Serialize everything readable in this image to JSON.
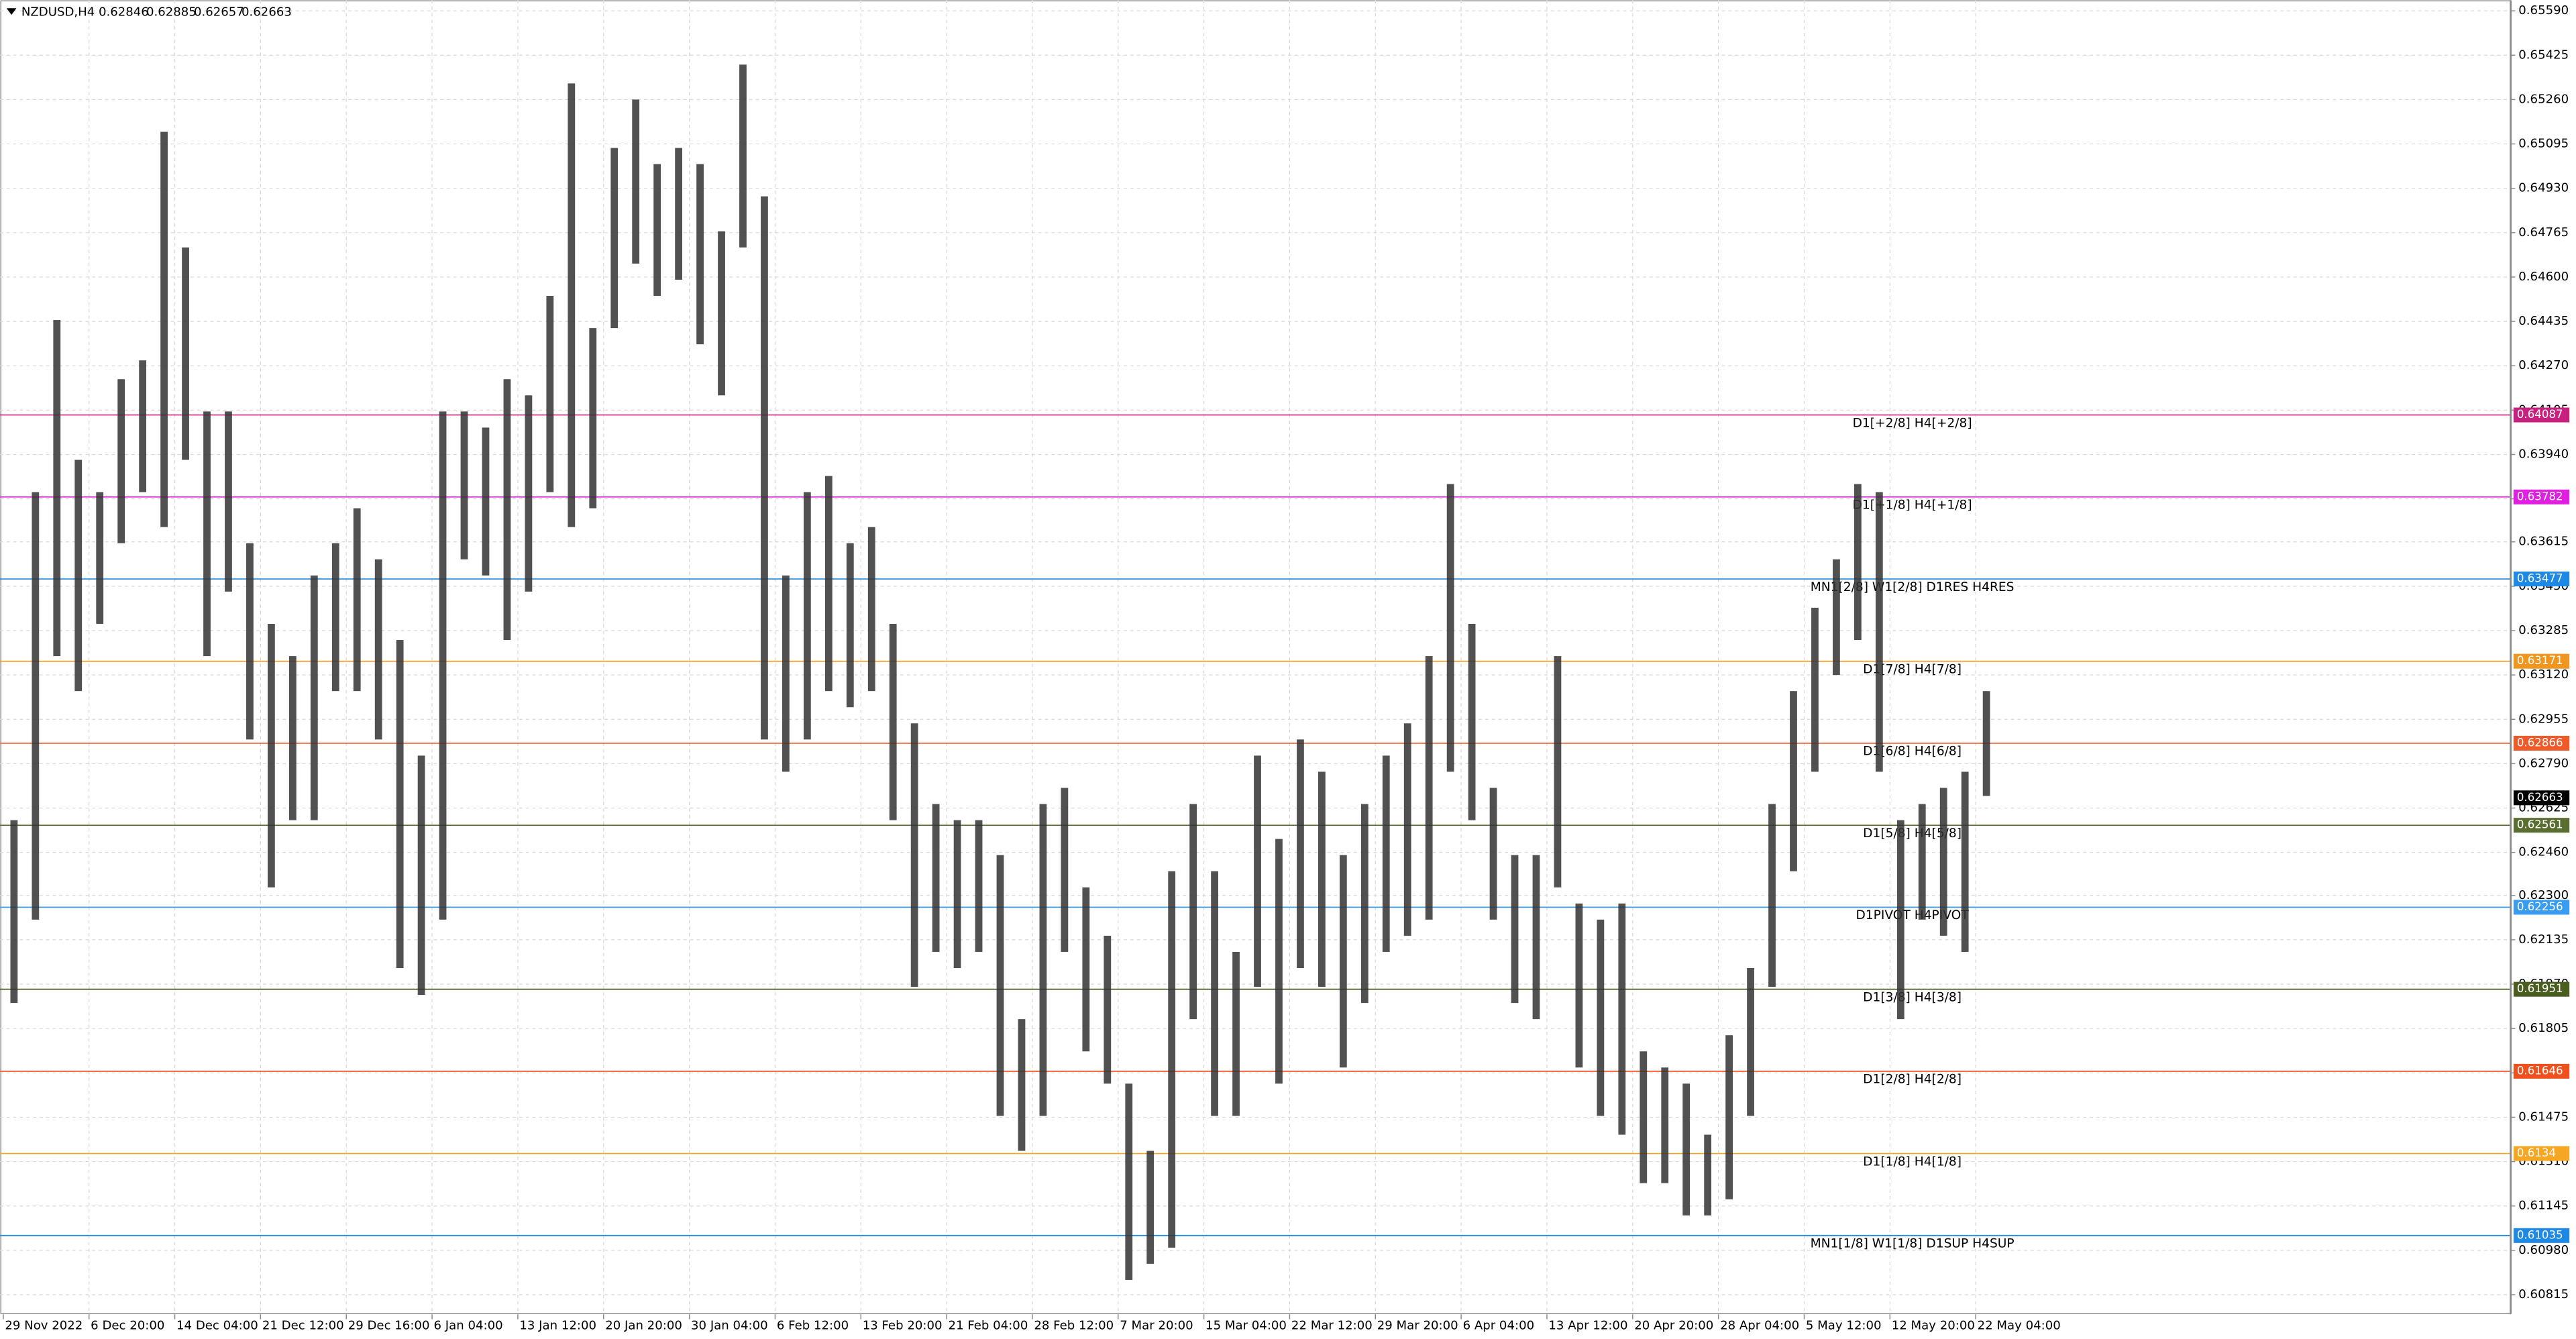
{
  "chart_data": {
    "type": "range-bar",
    "title": "NZDUSD,H4",
    "ohlc": [
      0.62846,
      0.62885,
      0.62657,
      0.62663
    ],
    "grid": true,
    "ylim": [
      0.60742,
      0.65618
    ],
    "yticks": [
      {
        "value": 0.6559,
        "label": "0.65590"
      },
      0.65425,
      {
        "value": 0.6526,
        "label": "0.65260"
      },
      0.65095,
      {
        "value": 0.6493,
        "label": "0.64930"
      },
      0.64765,
      {
        "value": 0.646,
        "label": "0.64600"
      },
      0.64435,
      {
        "value": 0.6427,
        "label": "0.64270"
      },
      0.64105,
      {
        "value": 0.6394,
        "label": "0.63940"
      },
      0.63775,
      0.63615,
      {
        "value": 0.6345,
        "label": "0.63450"
      },
      0.63285,
      {
        "value": 0.6312,
        "label": "0.63120"
      },
      0.62955,
      {
        "value": 0.6279,
        "label": "0.62790"
      },
      0.62625,
      {
        "value": 0.6246,
        "label": "0.62460"
      },
      {
        "value": 0.623,
        "label": "0.62300"
      },
      0.62135,
      {
        "value": 0.6197,
        "label": "0.61970"
      },
      0.61805,
      {
        "value": 0.6164,
        "label": "0.61640"
      },
      0.61475,
      {
        "value": 0.6131,
        "label": "0.61310"
      },
      0.61145,
      {
        "value": 0.6098,
        "label": "0.60980"
      },
      0.60815
    ],
    "categories": [
      "29 Nov 2022",
      null,
      null,
      null,
      "6 Dec 20:00",
      null,
      null,
      null,
      "14 Dec 04:00",
      null,
      null,
      null,
      "21 Dec 12:00",
      null,
      null,
      null,
      "29 Dec 16:00",
      null,
      null,
      null,
      "6 Jan 04:00",
      null,
      null,
      null,
      "13 Jan 12:00",
      null,
      null,
      null,
      "20 Jan 20:00",
      null,
      null,
      null,
      "30 Jan 04:00",
      null,
      null,
      null,
      "6 Feb 12:00",
      null,
      null,
      null,
      "13 Feb 20:00",
      null,
      null,
      null,
      "21 Feb 04:00",
      null,
      null,
      null,
      "28 Feb 12:00",
      null,
      null,
      null,
      "7 Mar 20:00",
      null,
      null,
      null,
      "15 Mar 04:00",
      null,
      null,
      null,
      "22 Mar 12:00",
      null,
      null,
      null,
      "29 Mar 20:00",
      null,
      null,
      null,
      "6 Apr 04:00",
      null,
      null,
      null,
      "13 Apr 12:00",
      null,
      null,
      null,
      "20 Apr 20:00",
      null,
      null,
      null,
      "28 Apr 04:00",
      null,
      null,
      null,
      "5 May 12:00",
      null,
      null,
      null,
      "12 May 20:00",
      null,
      null,
      null,
      "22 May 04:00"
    ],
    "series": [
      {
        "name": "High",
        "color": "#333333",
        "values": [
          0.6258,
          0.638,
          0.6444,
          0.6392,
          0.638,
          0.6422,
          0.6429,
          0.6514,
          0.6471,
          0.641,
          0.641,
          0.6361,
          0.6331,
          0.6319,
          0.6349,
          0.6361,
          0.6374,
          0.6355,
          0.6325,
          0.6282,
          0.641,
          0.641,
          0.6404,
          0.6422,
          0.6416,
          0.6453,
          0.6532,
          0.6441,
          0.6508,
          0.6526,
          0.6502,
          0.6508,
          0.6502,
          0.6477,
          0.6539,
          0.649,
          0.6349,
          0.638,
          0.6386,
          0.6361,
          0.6367,
          0.6331,
          0.6294,
          0.6264,
          0.6258,
          0.6258,
          0.6245,
          0.6184,
          0.6264,
          0.627,
          0.6233,
          0.6215,
          0.616,
          0.6135,
          0.6239,
          0.6264,
          0.6239,
          0.6209,
          0.6282,
          0.6251,
          0.6288,
          0.6276,
          0.6245,
          0.6264,
          0.6282,
          0.6294,
          0.6319,
          0.6383,
          0.6331,
          0.627,
          0.6245,
          0.6245,
          0.6319,
          0.6227,
          0.6221,
          0.6227,
          0.6172,
          0.6166,
          0.616,
          0.6141,
          0.6178,
          0.6203,
          0.6264,
          0.6306,
          0.6337,
          0.6355,
          0.6383,
          0.638,
          0.6258,
          0.6264,
          0.627,
          0.6276,
          0.6306
        ]
      },
      {
        "name": "Low",
        "color": "#333333",
        "values": [
          0.619,
          0.6221,
          0.6319,
          0.6306,
          0.6331,
          0.6361,
          0.638,
          0.6367,
          0.6392,
          0.6319,
          0.6343,
          0.6288,
          0.6233,
          0.6258,
          0.6258,
          0.6306,
          0.6306,
          0.6288,
          0.6203,
          0.6193,
          0.6221,
          0.6355,
          0.6349,
          0.6325,
          0.6343,
          0.638,
          0.6367,
          0.6374,
          0.6441,
          0.6465,
          0.6453,
          0.6459,
          0.6435,
          0.6416,
          0.6471,
          0.6288,
          0.6276,
          0.6288,
          0.6306,
          0.63,
          0.6306,
          0.6258,
          0.6196,
          0.6209,
          0.6203,
          0.6209,
          0.6148,
          0.6135,
          0.6148,
          0.6209,
          0.6172,
          0.616,
          0.6087,
          0.6093,
          0.6099,
          0.6184,
          0.6148,
          0.6148,
          0.6196,
          0.616,
          0.6203,
          0.6196,
          0.6166,
          0.619,
          0.6209,
          0.6215,
          0.6221,
          0.6276,
          0.6258,
          0.6221,
          0.619,
          0.6184,
          0.6233,
          0.6166,
          0.6148,
          0.6141,
          0.6123,
          0.6123,
          0.6111,
          0.6111,
          0.6117,
          0.6148,
          0.6196,
          0.6239,
          0.6276,
          0.6312,
          0.6325,
          0.6276,
          0.6184,
          0.6221,
          0.6215,
          0.6209,
          0.6267
        ]
      }
    ],
    "levels": [
      {
        "label": "D1[+2/8] H4[+2/8]",
        "value": 0.64087,
        "color": "#c8207f"
      },
      {
        "label": "D1[+1/8] H4[+1/8]",
        "value": 0.63782,
        "color": "#e020e0"
      },
      {
        "label": "MN1[2/8] W1[2/8] D1RES H4RES",
        "value": 0.63477,
        "color": "#1e88e5"
      },
      {
        "label": "D1[7/8] H4[7/8]",
        "value": 0.63171,
        "color": "#f0961e"
      },
      {
        "label": "D1[6/8] H4[6/8]",
        "value": 0.62866,
        "color": "#f05a28"
      },
      {
        "label": "D1[5/8] H4[5/8]",
        "value": 0.62561,
        "color": "#5a6e32"
      },
      {
        "label": "D1PIVOT H4PIVOT",
        "value": 0.62256,
        "color": "#3a9cf0"
      },
      {
        "label": "D1[3/8] H4[3/8]",
        "value": 0.61951,
        "color": "#4a5e20"
      },
      {
        "label": "D1[2/8] H4[2/8]",
        "value": 0.61646,
        "color": "#f0501e"
      },
      {
        "label": "D1[1/8] H4[1/8]",
        "value": 0.6134,
        "color": "#f5a623"
      },
      {
        "label": "MN1[1/8] W1[1/8] D1SUP H4SUP",
        "value": 0.61035,
        "color": "#1e88e5"
      }
    ],
    "last_price": 0.62663
  }
}
